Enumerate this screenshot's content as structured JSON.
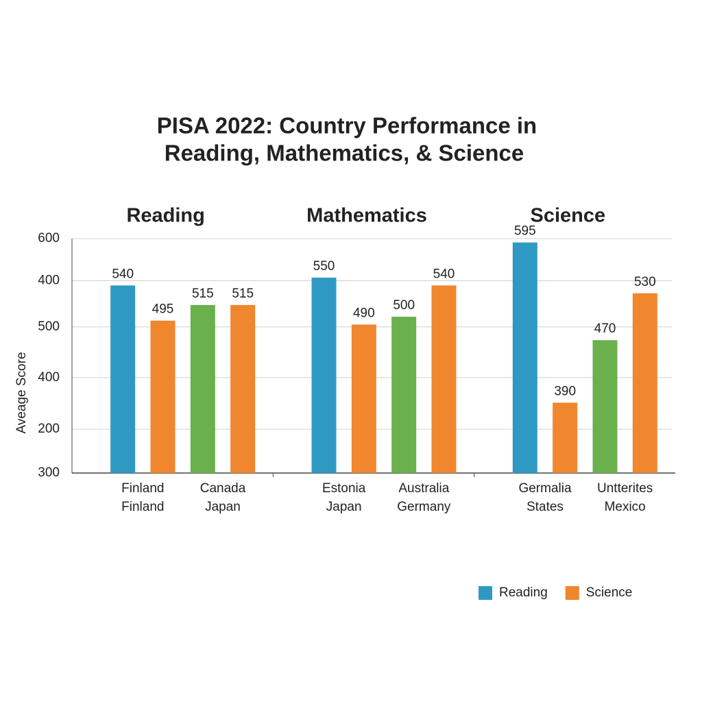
{
  "chart_data": {
    "type": "bar",
    "title": "PISA 2022: Country Performance in",
    "subtitle": "Reading, Mathematics, & Science",
    "y_label": "Aveage Score",
    "ylim": [
      300,
      600
    ],
    "yticks": [
      600,
      {
        "value": 546,
        "label": "400"
      },
      {
        "value": 487,
        "label": "500"
      },
      {
        "value": 422,
        "label": "400"
      },
      {
        "value": 356,
        "label": "200"
      },
      300
    ],
    "grid": true,
    "panels": [
      {
        "title": "Reading",
        "categories": [
          [
            "Finland",
            "Finland"
          ],
          [
            "Canada",
            "Japan"
          ]
        ],
        "values": [
          540,
          495,
          515,
          515
        ],
        "colors": [
          "#2e9ac4",
          "#f0862e",
          "#6ab04c",
          "#f0862e"
        ]
      },
      {
        "title": "Mathematics",
        "categories": [
          [
            "Estonia",
            "Japan"
          ],
          [
            "Australia",
            "Germany"
          ]
        ],
        "values": [
          550,
          490,
          500,
          540
        ],
        "colors": [
          "#2e9ac4",
          "#f0862e",
          "#6ab04c",
          "#f0862e"
        ]
      },
      {
        "title": "Science",
        "categories": [
          [
            "Germalia",
            "States"
          ],
          [
            "Untterites",
            "Mexico"
          ]
        ],
        "values": [
          595,
          390,
          470,
          530
        ],
        "colors": [
          "#2e9ac4",
          "#f0862e",
          "#6ab04c",
          "#f0862e"
        ]
      }
    ],
    "legend": [
      {
        "name": "Reading",
        "color": "#2e9ac4"
      },
      {
        "name": "Science",
        "color": "#f0862e"
      }
    ],
    "legend_position": "lower right"
  }
}
